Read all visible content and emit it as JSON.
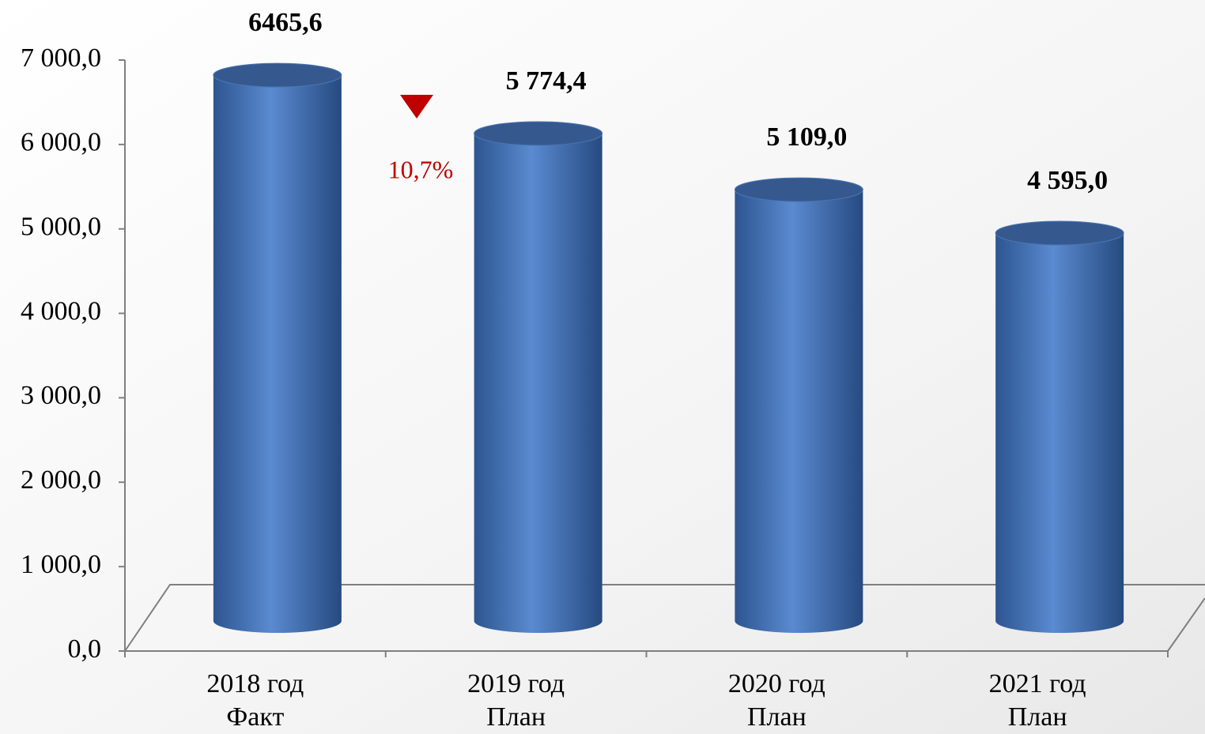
{
  "chart_data": {
    "type": "cylinder",
    "categories": [
      [
        "2018 год",
        "Факт"
      ],
      [
        "2019 год",
        "План"
      ],
      [
        "2020 год",
        "План"
      ],
      [
        "2021 год",
        "План"
      ]
    ],
    "values": [
      6465.6,
      5774.4,
      5109.0,
      4595.0
    ],
    "value_labels": [
      "6465,6",
      "5 774,4",
      "5 109,0",
      "4 595,0"
    ],
    "color": "#4f81bd",
    "ylim": [
      0,
      7000
    ],
    "yticks": [
      {
        "value": 0,
        "label": "0,0"
      },
      {
        "value": 1000,
        "label": "1 000,0"
      },
      {
        "value": 2000,
        "label": "2 000,0"
      },
      {
        "value": 3000,
        "label": "3 000,0"
      },
      {
        "value": 4000,
        "label": "4 000,0"
      },
      {
        "value": 5000,
        "label": "5 000,0"
      },
      {
        "value": 6000,
        "label": "6 000,0"
      },
      {
        "value": 7000,
        "label": "7 000,0"
      }
    ],
    "annotation": {
      "text": "10,7%",
      "color": "#c00000"
    }
  }
}
